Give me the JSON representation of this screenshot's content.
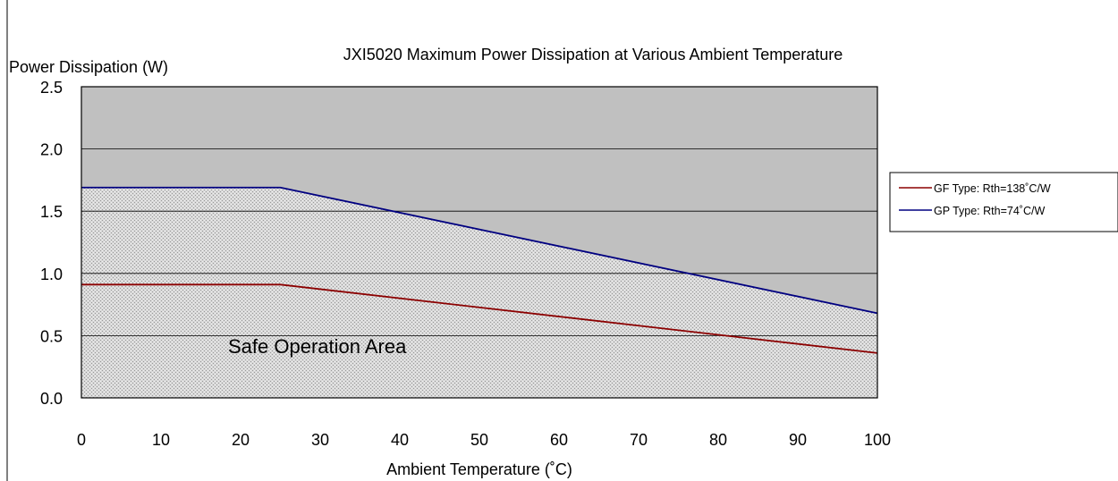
{
  "chart_data": {
    "type": "line",
    "title": "JXI5020 Maximum Power Dissipation at Various Ambient Temperature",
    "xlabel": "Ambient Temperature (˚C)",
    "ylabel": "Power Dissipation (W)",
    "xlim": [
      0,
      100
    ],
    "ylim": [
      0,
      2.5
    ],
    "x_ticks": [
      "0",
      "10",
      "20",
      "30",
      "40",
      "50",
      "60",
      "70",
      "80",
      "90",
      "100"
    ],
    "y_ticks": [
      "0.0",
      "0.5",
      "1.0",
      "1.5",
      "2.0",
      "2.5"
    ],
    "grid": true,
    "legend_position": "right",
    "annotation": "Safe Operation Area",
    "background_color": "#c0c0c0",
    "safe_area_hatch": "crosshatch",
    "series": [
      {
        "name": "GF Type: Rth=138˚C/W",
        "color": "#8b0000",
        "x": [
          0,
          25,
          100
        ],
        "y": [
          0.91,
          0.91,
          0.36
        ]
      },
      {
        "name": "GP Type: Rth=74˚C/W",
        "color": "#000080",
        "x": [
          0,
          25,
          100
        ],
        "y": [
          1.69,
          1.69,
          0.68
        ]
      }
    ]
  }
}
